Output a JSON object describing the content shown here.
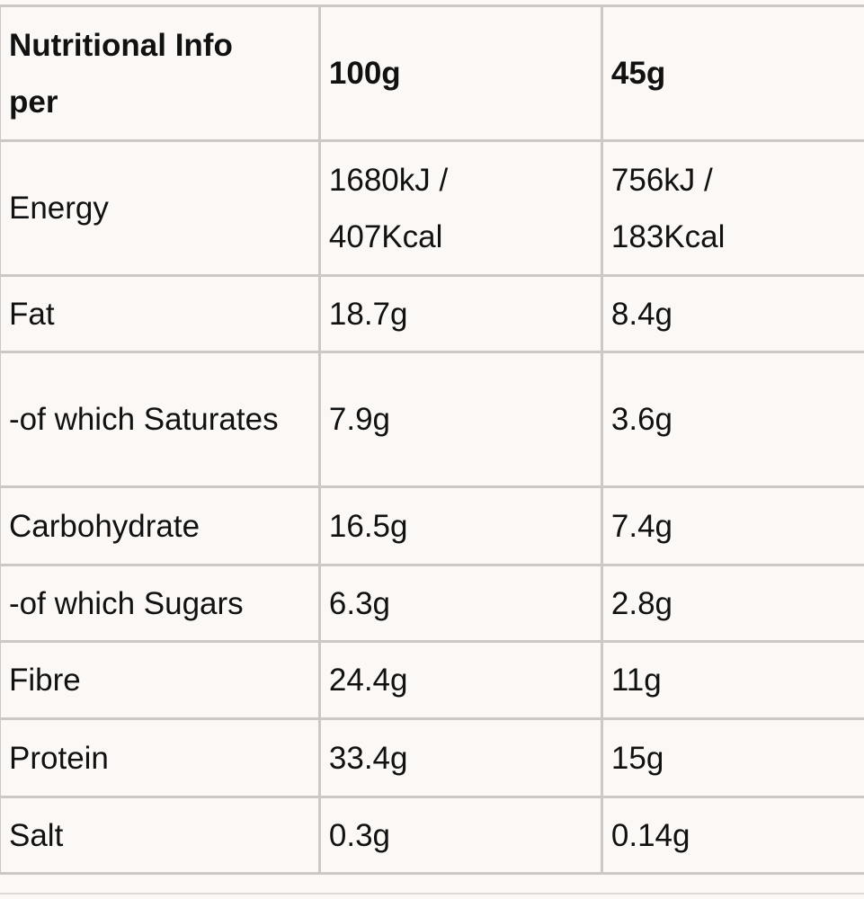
{
  "table": {
    "header": [
      "Nutritional Info per",
      "100g",
      "45g"
    ],
    "rows": [
      [
        "Energy",
        "1680kJ / 407Kcal",
        "756kJ / 183Kcal"
      ],
      [
        "Fat",
        "18.7g",
        "8.4g"
      ],
      [
        "-of which Saturates",
        "7.9g",
        "3.6g"
      ],
      [
        "Carbohydrate",
        "16.5g",
        "7.4g"
      ],
      [
        "-of which Sugars",
        "6.3g",
        "2.8g"
      ],
      [
        "Fibre",
        "24.4g",
        "11g"
      ],
      [
        "Protein",
        "33.4g",
        "15g"
      ],
      [
        "Salt",
        "0.3g",
        "0.14g"
      ]
    ]
  }
}
